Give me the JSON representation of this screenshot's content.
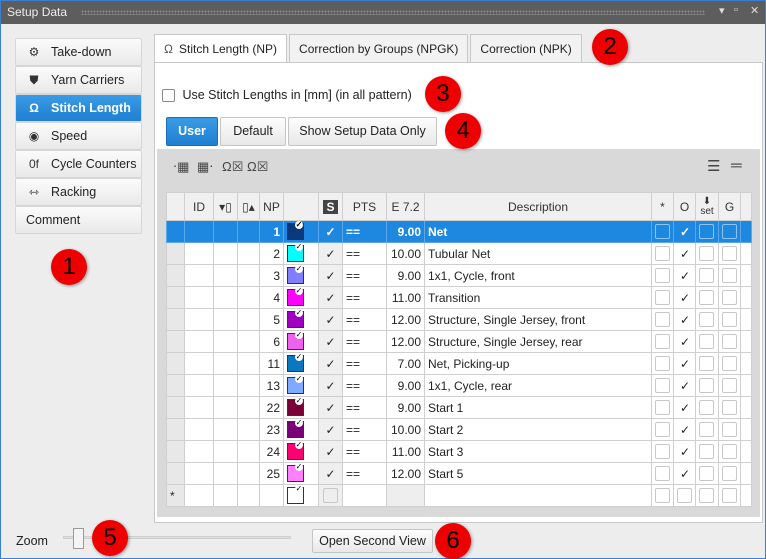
{
  "window": {
    "title": "Setup Data",
    "controls": [
      "▾",
      "▫",
      "✕"
    ]
  },
  "sidebar": {
    "items": [
      {
        "label": "Take-down",
        "icon": "take-down-icon",
        "glyph": "⚙"
      },
      {
        "label": "Yarn Carriers",
        "icon": "yarn-carrier-icon",
        "glyph": "⛊"
      },
      {
        "label": "Stitch Length",
        "icon": "stitch-length-icon",
        "glyph": "Ω",
        "active": true
      },
      {
        "label": "Speed",
        "icon": "speed-icon",
        "glyph": "◉"
      },
      {
        "label": "Cycle Counters",
        "icon": "cycle-counter-icon",
        "glyph": "0f"
      },
      {
        "label": "Racking",
        "icon": "racking-icon",
        "glyph": "⇿"
      },
      {
        "label": "Comment",
        "icon": "",
        "glyph": ""
      }
    ]
  },
  "tabs": [
    {
      "label": "Stitch Length (NP)",
      "active": true
    },
    {
      "label": "Correction by Groups (NPGK)"
    },
    {
      "label": "Correction (NPK)"
    }
  ],
  "tab_icon": "Ω",
  "use_mm_label": "Use Stitch Lengths in [mm] (in all pattern)",
  "buttons": {
    "user": "User",
    "default": "Default",
    "show_setup": "Show Setup Data Only"
  },
  "table": {
    "headers": [
      "",
      "ID",
      "▾▯",
      "▯▴",
      "NP",
      "",
      "S",
      "PTS",
      "E 7.2",
      "Description",
      "*",
      "O",
      "set",
      "G",
      ""
    ],
    "rows": [
      {
        "np": "1",
        "color": "#0a3a7c",
        "pts": "==",
        "val": "9.00",
        "desc": "Net",
        "o": true
      },
      {
        "np": "2",
        "color": "#00ffff",
        "pts": "==",
        "val": "10.00",
        "desc": "Tubular Net",
        "o": true
      },
      {
        "np": "3",
        "color": "#7f7fff",
        "pts": "==",
        "val": "9.00",
        "desc": "1x1, Cycle, front",
        "o": true
      },
      {
        "np": "4",
        "color": "#ff00ff",
        "pts": "==",
        "val": "11.00",
        "desc": "Transition",
        "o": true
      },
      {
        "np": "5",
        "color": "#a000c0",
        "pts": "==",
        "val": "12.00",
        "desc": "Structure, Single Jersey, front",
        "o": true
      },
      {
        "np": "6",
        "color": "#ee60ee",
        "pts": "==",
        "val": "12.00",
        "desc": "Structure, Single Jersey, rear",
        "o": true
      },
      {
        "np": "11",
        "color": "#0a78c0",
        "pts": "==",
        "val": "7.00",
        "desc": "Net, Picking-up",
        "o": true
      },
      {
        "np": "13",
        "color": "#80aaff",
        "pts": "==",
        "val": "9.00",
        "desc": "1x1, Cycle, rear",
        "o": true
      },
      {
        "np": "22",
        "color": "#7a0038",
        "pts": "==",
        "val": "9.00",
        "desc": "Start 1",
        "o": true
      },
      {
        "np": "23",
        "color": "#7a0078",
        "pts": "==",
        "val": "10.00",
        "desc": "Start 2",
        "o": true
      },
      {
        "np": "24",
        "color": "#ff0070",
        "pts": "==",
        "val": "11.00",
        "desc": "Start 3",
        "o": true
      },
      {
        "np": "25",
        "color": "#ff80ff",
        "pts": "==",
        "val": "12.00",
        "desc": "Start 5",
        "o": true
      }
    ],
    "new_row_marker": "*",
    "check": "✓"
  },
  "zoom": {
    "label": "Zoom",
    "value_fraction": 0.05
  },
  "open_second_view": "Open Second View",
  "annotations": [
    "1",
    "2",
    "3",
    "4",
    "5",
    "6"
  ]
}
